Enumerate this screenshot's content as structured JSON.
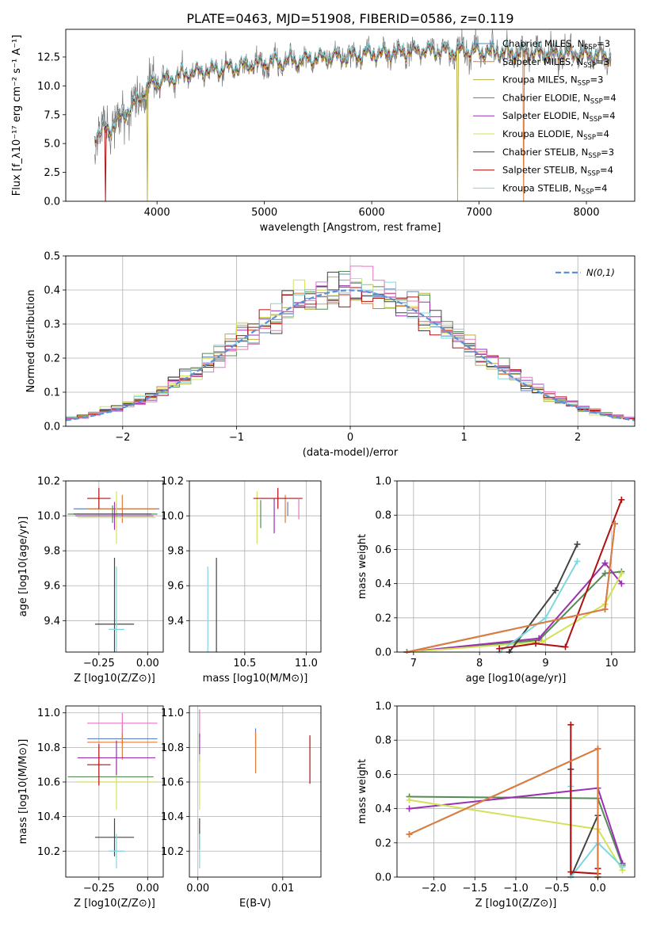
{
  "chart_data": [
    {
      "id": "spectrum",
      "type": "line",
      "title": "PLATE=0463, MJD=51908, FIBERID=0586, z=0.119",
      "xlabel": "wavelength [Angstrom, rest frame]",
      "ylabel": "Flux [f_λ10⁻¹⁷ erg cm⁻² s⁻¹ A⁻¹]",
      "xlim": [
        3150,
        8450
      ],
      "ylim": [
        0,
        14.9
      ],
      "xticks": [
        4000,
        5000,
        6000,
        7000,
        8000
      ],
      "yticks": [
        0.0,
        2.5,
        5.0,
        7.5,
        10.0,
        12.5
      ],
      "ytick_labels": [
        "0.0",
        "2.5",
        "5.0",
        "7.5",
        "10.0",
        "12.5"
      ],
      "grid": false,
      "legend_position": "top-right",
      "continuum": {
        "x": [
          3420,
          3600,
          3800,
          3950,
          4100,
          4300,
          4600,
          5000,
          5500,
          6000,
          6500,
          7000,
          7500,
          8000,
          8230
        ],
        "y": [
          5.8,
          6.6,
          8.6,
          10.2,
          10.6,
          11.1,
          11.5,
          12.0,
          12.4,
          12.8,
          13.1,
          13.0,
          12.9,
          12.8,
          12.6
        ]
      },
      "series": [
        {
          "name": "Chabrier MILES, N_SSP=3",
          "color": "#5b84c4"
        },
        {
          "name": "Salpeter MILES, N_SSP=3",
          "color": "#e07b39"
        },
        {
          "name": "Kroupa MILES, N_SSP=3",
          "color": "#b8b042"
        },
        {
          "name": "Chabrier ELODIE, N_SSP=4",
          "color": "#558b55"
        },
        {
          "name": "Salpeter ELODIE, N_SSP=4",
          "color": "#9b30b0"
        },
        {
          "name": "Kroupa ELODIE, N_SSP=4",
          "color": "#d4e157"
        },
        {
          "name": "Chabrier STELIB, N_SSP=3",
          "color": "#444444"
        },
        {
          "name": "Salpeter STELIB, N_SSP=4",
          "color": "#b01010"
        },
        {
          "name": "Kroupa STELIB, N_SSP=4",
          "color": "#7fd6de"
        }
      ],
      "data_color": "#777777",
      "spikes": [
        {
          "x": 3520,
          "color": "#b01010"
        },
        {
          "x": 3910,
          "color": "#b8b042"
        },
        {
          "x": 6800,
          "color": "#b8b042"
        },
        {
          "x": 7415,
          "color": "#e07b39"
        }
      ]
    },
    {
      "id": "residuals",
      "type": "bar",
      "xlabel": "(data-model)/error",
      "ylabel": "Normed distribution",
      "xlim": [
        -2.5,
        2.5
      ],
      "ylim": [
        0,
        0.5
      ],
      "xticks": [
        -2,
        -1,
        0,
        1,
        2
      ],
      "xtick_labels": [
        "−2",
        "−1",
        "0",
        "1",
        "2"
      ],
      "yticks": [
        0.0,
        0.1,
        0.2,
        0.3,
        0.4,
        0.5
      ],
      "ytick_labels": [
        "0.0",
        "0.1",
        "0.2",
        "0.3",
        "0.4",
        "0.5"
      ],
      "grid": true,
      "legend": "N(0,1)",
      "legend_position": "top-right",
      "gaussian": {
        "mu": 0,
        "sigma": 1,
        "color": "#5b8fd6"
      },
      "histogram_bin_width": 0.1,
      "histogram_colors": [
        "#5b84c4",
        "#e07b39",
        "#b8b042",
        "#558b55",
        "#9b30b0",
        "#d4e157",
        "#444444",
        "#b01010",
        "#7fd6de",
        "#e377c2"
      ]
    },
    {
      "id": "age-vs-Z",
      "type": "scatter",
      "xlabel": "Z [log10(Z/Z⊙)]",
      "ylabel": "age [log10(age/yr)]",
      "xlim": [
        -0.42,
        0.08
      ],
      "ylim": [
        9.22,
        10.2
      ],
      "xticks": [
        -0.25,
        0.0
      ],
      "xtick_labels": [
        "−0.25",
        "0.00"
      ],
      "yticks": [
        9.4,
        9.6,
        9.8,
        10.0,
        10.2
      ],
      "ytick_labels": [
        "9.4",
        "9.6",
        "9.8",
        "10.0",
        "10.2"
      ],
      "grid": true,
      "points": [
        {
          "x": -0.16,
          "y": 10.04,
          "xerr": 0.22,
          "yerr": 0.03,
          "color": "#5b84c4"
        },
        {
          "x": -0.13,
          "y": 10.04,
          "xerr": 0.18,
          "yerr": 0.08,
          "color": "#e07b39"
        },
        {
          "x": -0.16,
          "y": 9.99,
          "xerr": 0.2,
          "yerr": 0.15,
          "color": "#d4e157"
        },
        {
          "x": -0.18,
          "y": 10.01,
          "xerr": 0.23,
          "yerr": 0.05,
          "color": "#558b55"
        },
        {
          "x": -0.17,
          "y": 10.0,
          "xerr": 0.2,
          "yerr": 0.08,
          "color": "#9b30b0"
        },
        {
          "x": -0.25,
          "y": 10.1,
          "xerr": 0.06,
          "yerr": 0.06,
          "color": "#b01010"
        },
        {
          "x": -0.18,
          "y": 10.01,
          "xerr": 0.2,
          "yerr": 0.0,
          "color": "#444444"
        },
        {
          "x": -0.17,
          "y": 9.38,
          "xerr": 0.1,
          "yerr": 0.38,
          "color": "#444444"
        },
        {
          "x": -0.16,
          "y": 9.35,
          "xerr": 0.04,
          "yerr": 0.36,
          "color": "#7fd6de"
        }
      ]
    },
    {
      "id": "age-vs-mass",
      "type": "scatter",
      "xlabel": "mass [log10(M/M⊙)]",
      "ylabel": "",
      "xlim": [
        10.05,
        11.12
      ],
      "ylim": [
        9.22,
        10.2
      ],
      "xticks": [
        10.5,
        11.0
      ],
      "xtick_labels": [
        "10.5",
        "11.0"
      ],
      "yticks": [
        9.4,
        9.6,
        9.8,
        10.0,
        10.2
      ],
      "ytick_labels": [
        "9.4",
        "9.6",
        "9.8",
        "10.0",
        "10.2"
      ],
      "grid": true,
      "points": [
        {
          "x": 10.85,
          "y": 10.04,
          "xerr": 0.0,
          "yerr": 0.04,
          "color": "#5b84c4"
        },
        {
          "x": 10.83,
          "y": 10.04,
          "xerr": 0.0,
          "yerr": 0.08,
          "color": "#e07b39"
        },
        {
          "x": 10.6,
          "y": 9.99,
          "xerr": 0.0,
          "yerr": 0.15,
          "color": "#d4e157"
        },
        {
          "x": 10.63,
          "y": 10.01,
          "xerr": 0.0,
          "yerr": 0.08,
          "color": "#558b55"
        },
        {
          "x": 10.74,
          "y": 10.0,
          "xerr": 0.0,
          "yerr": 0.1,
          "color": "#9b30b0"
        },
        {
          "x": 10.77,
          "y": 10.1,
          "xerr": 0.2,
          "yerr": 0.06,
          "color": "#b01010"
        },
        {
          "x": 10.94,
          "y": 10.04,
          "xerr": 0.0,
          "yerr": 0.06,
          "color": "#e377c2"
        },
        {
          "x": 10.27,
          "y": 9.38,
          "xerr": 0.0,
          "yerr": 0.38,
          "color": "#444444"
        },
        {
          "x": 10.2,
          "y": 9.35,
          "xerr": 0.0,
          "yerr": 0.36,
          "color": "#7fd6de"
        }
      ]
    },
    {
      "id": "massweight-vs-age",
      "type": "line",
      "xlabel": "age [log10(age/yr)]",
      "ylabel": "mass weight",
      "xlim": [
        6.75,
        10.35
      ],
      "ylim": [
        0,
        1
      ],
      "xticks": [
        7,
        8,
        9,
        10
      ],
      "xtick_labels": [
        "7",
        "8",
        "9",
        "10"
      ],
      "yticks": [
        0.0,
        0.2,
        0.4,
        0.6,
        0.8,
        1.0
      ],
      "ytick_labels": [
        "0.0",
        "0.2",
        "0.4",
        "0.6",
        "0.8",
        "1.0"
      ],
      "grid": true,
      "series": [
        {
          "color": "#558b55",
          "x": [
            6.9,
            8.9,
            9.9,
            10.15
          ],
          "y": [
            0.0,
            0.07,
            0.46,
            0.47
          ]
        },
        {
          "color": "#9b30b0",
          "x": [
            6.9,
            8.9,
            9.9,
            10.15
          ],
          "y": [
            0.0,
            0.08,
            0.52,
            0.4
          ]
        },
        {
          "color": "#d4e157",
          "x": [
            6.9,
            8.95,
            9.9,
            10.15
          ],
          "y": [
            0.0,
            0.06,
            0.28,
            0.46
          ]
        },
        {
          "color": "#444444",
          "x": [
            8.45,
            9.15,
            9.48
          ],
          "y": [
            0.0,
            0.36,
            0.63
          ]
        },
        {
          "color": "#7fd6de",
          "x": [
            8.3,
            9.0,
            9.48
          ],
          "y": [
            0.0,
            0.2,
            0.53
          ]
        },
        {
          "color": "#b01010",
          "x": [
            8.3,
            8.85,
            9.3,
            10.15
          ],
          "y": [
            0.02,
            0.05,
            0.03,
            0.89
          ]
        },
        {
          "color": "#5b84c4",
          "x": [
            6.9,
            9.9,
            10.05
          ],
          "y": [
            0.0,
            0.25,
            0.75
          ]
        },
        {
          "color": "#e07b39",
          "x": [
            6.9,
            9.9,
            10.05
          ],
          "y": [
            0.0,
            0.25,
            0.75
          ]
        }
      ]
    },
    {
      "id": "mass-vs-Z",
      "type": "scatter",
      "xlabel": "Z [log10(Z/Z⊙)]",
      "ylabel": "mass [log10(M/M⊙)]",
      "xlim": [
        -0.42,
        0.08
      ],
      "ylim": [
        10.05,
        11.04
      ],
      "xticks": [
        -0.25,
        0.0
      ],
      "xtick_labels": [
        "−0.25",
        "0.00"
      ],
      "yticks": [
        10.2,
        10.4,
        10.6,
        10.8,
        11.0
      ],
      "ytick_labels": [
        "10.2",
        "10.4",
        "10.6",
        "10.8",
        "11.0"
      ],
      "grid": true,
      "points": [
        {
          "x": -0.13,
          "y": 10.85,
          "xerr": 0.18,
          "yerr": 0.03,
          "color": "#5b84c4"
        },
        {
          "x": -0.13,
          "y": 10.83,
          "xerr": 0.18,
          "yerr": 0.1,
          "color": "#e07b39"
        },
        {
          "x": -0.16,
          "y": 10.6,
          "xerr": 0.2,
          "yerr": 0.16,
          "color": "#d4e157"
        },
        {
          "x": -0.19,
          "y": 10.63,
          "xerr": 0.22,
          "yerr": 0.0,
          "color": "#558b55"
        },
        {
          "x": -0.16,
          "y": 10.74,
          "xerr": 0.2,
          "yerr": 0.1,
          "color": "#9b30b0"
        },
        {
          "x": -0.25,
          "y": 10.7,
          "xerr": 0.06,
          "yerr": 0.12,
          "color": "#b01010"
        },
        {
          "x": -0.13,
          "y": 10.94,
          "xerr": 0.18,
          "yerr": 0.06,
          "color": "#e377c2"
        },
        {
          "x": -0.17,
          "y": 10.28,
          "xerr": 0.1,
          "yerr": 0.11,
          "color": "#444444"
        },
        {
          "x": -0.16,
          "y": 10.2,
          "xerr": 0.04,
          "yerr": 0.1,
          "color": "#7fd6de"
        }
      ]
    },
    {
      "id": "mass-vs-ebv",
      "type": "scatter",
      "xlabel": "E(B-V)",
      "ylabel": "",
      "xlim": [
        -0.001,
        0.0145
      ],
      "ylim": [
        10.05,
        11.04
      ],
      "xticks": [
        0.0,
        0.01
      ],
      "xtick_labels": [
        "0.00",
        "0.01"
      ],
      "yticks": [
        10.2,
        10.4,
        10.6,
        10.8,
        11.0
      ],
      "ytick_labels": [
        "10.2",
        "10.4",
        "10.6",
        "10.8",
        "11.0"
      ],
      "grid": true,
      "points": [
        {
          "x": 0.0068,
          "y": 10.85,
          "xerr": 0,
          "yerr": 0.06,
          "color": "#5b84c4"
        },
        {
          "x": 0.0068,
          "y": 10.77,
          "xerr": 0,
          "yerr": 0.12,
          "color": "#e07b39"
        },
        {
          "x": 0.0132,
          "y": 10.73,
          "xerr": 0,
          "yerr": 0.14,
          "color": "#b01010"
        },
        {
          "x": 0.0002,
          "y": 10.94,
          "xerr": 0,
          "yerr": 0.08,
          "color": "#e377c2"
        },
        {
          "x": 0.0002,
          "y": 10.8,
          "xerr": 0,
          "yerr": 0.08,
          "color": "#9b30b0"
        },
        {
          "x": 0.0002,
          "y": 10.6,
          "xerr": 0,
          "yerr": 0.16,
          "color": "#d4e157"
        },
        {
          "x": 0.0002,
          "y": 10.3,
          "xerr": 0,
          "yerr": 0.09,
          "color": "#444444"
        },
        {
          "x": 0.0002,
          "y": 10.2,
          "xerr": 0,
          "yerr": 0.1,
          "color": "#7fd6de"
        }
      ]
    },
    {
      "id": "massweight-vs-Z",
      "type": "line",
      "xlabel": "Z [log10(Z/Z⊙)]",
      "ylabel": "mass weight",
      "xlim": [
        -2.45,
        0.45
      ],
      "ylim": [
        0,
        1
      ],
      "xticks": [
        -2.0,
        -1.5,
        -1.0,
        -0.5,
        0.0
      ],
      "xtick_labels": [
        "−2.0",
        "−1.5",
        "−1.0",
        "−0.5",
        "0.0"
      ],
      "yticks": [
        0.0,
        0.2,
        0.4,
        0.6,
        0.8,
        1.0
      ],
      "ytick_labels": [
        "0.0",
        "0.2",
        "0.4",
        "0.6",
        "0.8",
        "1.0"
      ],
      "grid": true,
      "series": [
        {
          "color": "#558b55",
          "x": [
            -2.3,
            0.0,
            0.3
          ],
          "y": [
            0.47,
            0.46,
            0.07
          ]
        },
        {
          "color": "#9b30b0",
          "x": [
            -2.3,
            0.0,
            0.3
          ],
          "y": [
            0.4,
            0.52,
            0.08
          ]
        },
        {
          "color": "#d4e157",
          "x": [
            -2.3,
            0.0,
            0.3
          ],
          "y": [
            0.45,
            0.28,
            0.04
          ]
        },
        {
          "color": "#444444",
          "x": [
            -0.33,
            -0.33,
            0.0,
            0.0
          ],
          "y": [
            0.63,
            0.0,
            0.36,
            0.0
          ]
        },
        {
          "color": "#7fd6de",
          "x": [
            -0.33,
            -0.33,
            0.0,
            0.3
          ],
          "y": [
            0.53,
            0.0,
            0.2,
            0.06
          ]
        },
        {
          "color": "#b01010",
          "x": [
            -0.33,
            -0.33,
            0.0,
            0.0
          ],
          "y": [
            0.89,
            0.03,
            0.02,
            0.05
          ]
        },
        {
          "color": "#5b84c4",
          "x": [
            -2.3,
            0.0,
            0.0
          ],
          "y": [
            0.25,
            0.75,
            0.0
          ]
        },
        {
          "color": "#e07b39",
          "x": [
            -2.3,
            0.0,
            0.0
          ],
          "y": [
            0.25,
            0.75,
            0.0
          ]
        }
      ]
    }
  ]
}
